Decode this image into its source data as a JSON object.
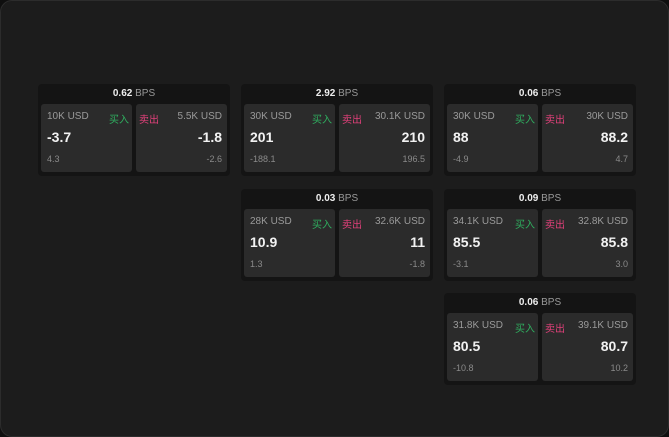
{
  "unit_label": "BPS",
  "buy_label": "买入",
  "sell_label": "卖出",
  "colors": {
    "buy": "#2fae5f",
    "sell": "#e0407a",
    "background": "#1c1c1c"
  },
  "cards": [
    {
      "bps": "0.62",
      "buy": {
        "size": "10K USD",
        "price": "-3.7",
        "change": "4.3"
      },
      "sell": {
        "size": "5.5K USD",
        "price": "-1.8",
        "change": "-2.6"
      }
    },
    {
      "bps": "2.92",
      "buy": {
        "size": "30K USD",
        "price": "201",
        "change": "-188.1"
      },
      "sell": {
        "size": "30.1K USD",
        "price": "210",
        "change": "196.5"
      }
    },
    {
      "bps": "0.06",
      "buy": {
        "size": "30K USD",
        "price": "88",
        "change": "-4.9"
      },
      "sell": {
        "size": "30K USD",
        "price": "88.2",
        "change": "4.7"
      }
    },
    {
      "bps": "0.03",
      "buy": {
        "size": "28K USD",
        "price": "10.9",
        "change": "1.3"
      },
      "sell": {
        "size": "32.6K USD",
        "price": "11",
        "change": "-1.8"
      }
    },
    {
      "bps": "0.09",
      "buy": {
        "size": "34.1K USD",
        "price": "85.5",
        "change": "-3.1"
      },
      "sell": {
        "size": "32.8K USD",
        "price": "85.8",
        "change": "3.0"
      }
    },
    {
      "bps": "0.06",
      "buy": {
        "size": "31.8K USD",
        "price": "80.5",
        "change": "-10.8"
      },
      "sell": {
        "size": "39.1K USD",
        "price": "80.7",
        "change": "10.2"
      }
    }
  ]
}
